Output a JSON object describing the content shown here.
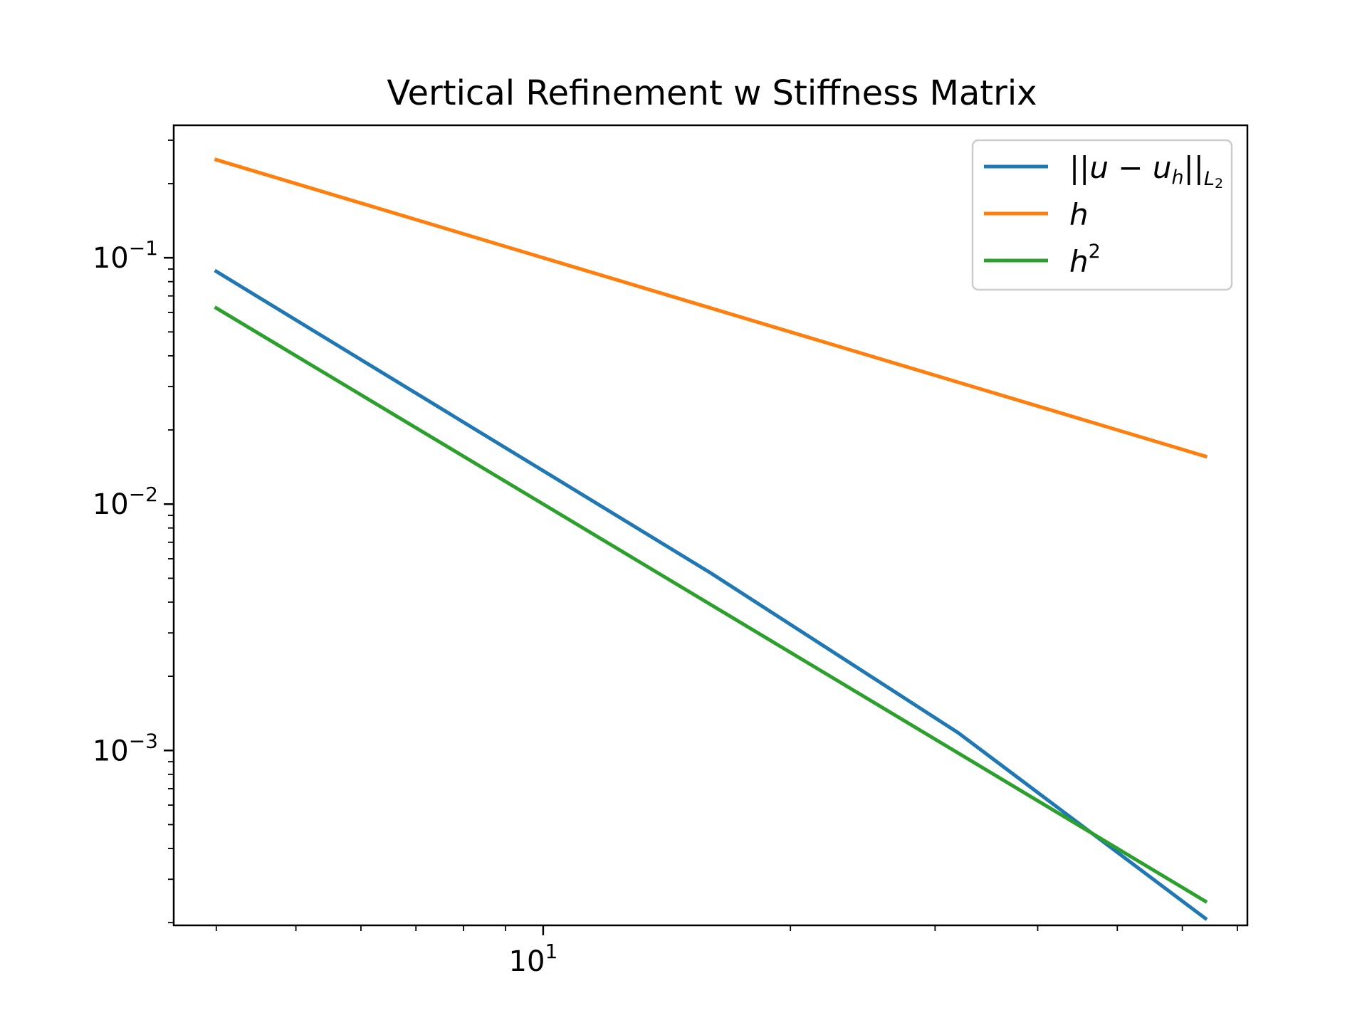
{
  "chart_data": {
    "type": "line",
    "title": "Vertical Refinement w Stiffness Matrix",
    "xlabel": "",
    "ylabel": "",
    "xscale": "log",
    "yscale": "log",
    "xlim": [
      3.55,
      72
    ],
    "ylim": [
      0.000195,
      0.345
    ],
    "grid": false,
    "legend_position": "upper right",
    "x_ticks": [
      {
        "base": "10",
        "exp": "1",
        "value": 10
      }
    ],
    "y_ticks": [
      {
        "base": "10",
        "exp": "−1",
        "value": 0.1
      },
      {
        "base": "10",
        "exp": "−2",
        "value": 0.01
      },
      {
        "base": "10",
        "exp": "−3",
        "value": 0.001
      }
    ],
    "x": [
      4,
      8,
      16,
      32,
      64
    ],
    "series": [
      {
        "name": "||u − u_h||_L2",
        "color": "#1f77b4",
        "values": [
          0.088,
          0.0215,
          0.00525,
          0.00118,
          0.000208
        ]
      },
      {
        "name": "h",
        "color": "#ff7f0e",
        "values": [
          0.25,
          0.125,
          0.0625,
          0.03125,
          0.015625
        ]
      },
      {
        "name": "h^2",
        "color": "#2ca02c",
        "values": [
          0.0625,
          0.015625,
          0.00390625,
          0.0009765625,
          0.000244140625
        ]
      }
    ],
    "legend": {
      "entries": [
        {
          "pre": "||",
          "u": "u",
          "minus": " − ",
          "u2": "u",
          "sub": "h",
          "post": "||",
          "sub2": "L",
          "subsub": "2"
        },
        {
          "text": "h"
        },
        {
          "text": "h",
          "sup": "2"
        }
      ]
    }
  }
}
